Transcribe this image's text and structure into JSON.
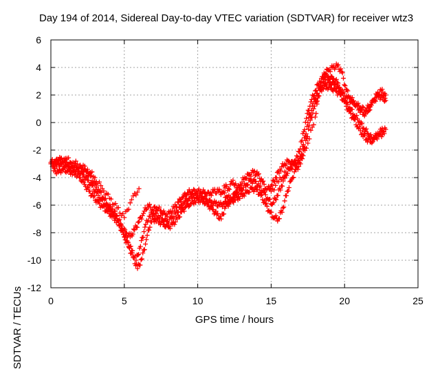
{
  "chart_data": {
    "type": "scatter",
    "title": "Day 194 of 2014, Sidereal Day-to-day VTEC variation (SDTVAR) for receiver wtz3",
    "xlabel": "GPS time / hours",
    "ylabel": "SDTVAR / TECUs",
    "xlim": [
      0,
      25
    ],
    "ylim": [
      -12,
      6
    ],
    "xticks": [
      0,
      5,
      10,
      15,
      20,
      25
    ],
    "yticks": [
      -12,
      -10,
      -8,
      -6,
      -4,
      -2,
      0,
      2,
      4,
      6
    ],
    "grid": true,
    "marker": "+",
    "color": "#ff0000",
    "series": [
      {
        "x": [
          0.0,
          0.3,
          0.6,
          0.9,
          1.2,
          1.5,
          1.8,
          2.1,
          2.4,
          2.7,
          3.0,
          3.3,
          3.6,
          3.9,
          4.2,
          4.5,
          4.8,
          5.1,
          5.4,
          5.7,
          6.0,
          6.3,
          6.6,
          6.9,
          7.2,
          7.5,
          7.8,
          8.1,
          8.4,
          8.7,
          9.0,
          9.3,
          9.6,
          9.9,
          10.2,
          10.5,
          10.8,
          11.1,
          11.4,
          11.7,
          12.0,
          12.3,
          12.6,
          12.9,
          13.2,
          13.5,
          13.8,
          14.1,
          14.4,
          14.7,
          15.0,
          15.3,
          15.6,
          15.9,
          16.2,
          16.5,
          16.8,
          17.1,
          17.4,
          17.7,
          18.0,
          18.3,
          18.6,
          18.9,
          19.2,
          19.5,
          19.8,
          20.1,
          20.4,
          20.7,
          21.0,
          21.3,
          21.6,
          21.9,
          22.2,
          22.5,
          22.8
        ],
        "y": [
          -3.0,
          -2.9,
          -2.7,
          -2.8,
          -3.0,
          -3.1,
          -3.2,
          -3.3,
          -3.6,
          -3.9,
          -4.5,
          -5.0,
          -5.5,
          -6.0,
          -6.3,
          -6.8,
          -7.5,
          -8.0,
          -8.3,
          -7.8,
          -7.2,
          -6.6,
          -6.0,
          -6.3,
          -6.2,
          -6.4,
          -6.7,
          -6.6,
          -6.2,
          -5.8,
          -5.4,
          -5.1,
          -5.0,
          -5.0,
          -5.0,
          -5.1,
          -5.2,
          -5.0,
          -5.0,
          -5.1,
          -5.4,
          -5.6,
          -5.0,
          -4.5,
          -4.0,
          -3.8,
          -3.6,
          -3.8,
          -4.3,
          -4.9,
          -4.6,
          -4.0,
          -3.4,
          -3.0,
          -2.8,
          -3.0,
          -2.5,
          -1.3,
          0.3,
          1.5,
          2.3,
          3.0,
          3.3,
          3.3,
          3.2,
          2.9,
          2.1,
          1.4,
          1.0,
          0.5,
          0.1,
          -0.4,
          -0.8,
          -1.2,
          -0.9,
          -0.6,
          -0.5
        ]
      },
      {
        "x": [
          0.2,
          0.5,
          0.8,
          1.1,
          1.4,
          1.7,
          2.0,
          2.3,
          2.6,
          2.9,
          3.2,
          3.5,
          3.8,
          4.1,
          4.4,
          4.7,
          5.0,
          5.3,
          5.6,
          5.9,
          6.2,
          6.5,
          6.8,
          7.1,
          7.4,
          7.7,
          8.0,
          8.3,
          8.6,
          8.9,
          9.2,
          9.5,
          9.8,
          10.1,
          10.4,
          10.7,
          11.0,
          11.3,
          11.6,
          11.9,
          12.2,
          12.5,
          12.8,
          13.1,
          13.4,
          13.7,
          14.0,
          14.3,
          14.6,
          14.9,
          15.2,
          15.5,
          15.8,
          16.1,
          16.4,
          16.7,
          17.0,
          17.3,
          17.6,
          17.9,
          18.2,
          18.5,
          18.8,
          19.1,
          19.4,
          19.7,
          20.0,
          20.3,
          20.6,
          20.9,
          21.2,
          21.5,
          21.8,
          22.1,
          22.4,
          22.7
        ],
        "y": [
          -3.5,
          -3.6,
          -3.4,
          -3.5,
          -3.6,
          -3.7,
          -4.0,
          -4.5,
          -5.0,
          -5.4,
          -5.8,
          -6.1,
          -6.4,
          -6.7,
          -7.0,
          -7.5,
          -8.3,
          -9.0,
          -9.8,
          -10.6,
          -9.9,
          -8.5,
          -7.2,
          -7.0,
          -7.2,
          -7.4,
          -7.6,
          -7.4,
          -7.0,
          -6.5,
          -6.1,
          -5.9,
          -5.7,
          -5.6,
          -5.7,
          -6.0,
          -6.3,
          -6.7,
          -7.0,
          -6.1,
          -5.8,
          -5.6,
          -5.4,
          -5.2,
          -5.0,
          -4.8,
          -4.9,
          -5.3,
          -5.9,
          -6.5,
          -6.9,
          -7.0,
          -6.2,
          -5.0,
          -4.1,
          -3.4,
          -3.0,
          -1.8,
          -0.2,
          1.0,
          1.9,
          2.6,
          2.6,
          2.5,
          2.3,
          2.0,
          1.5,
          0.8,
          0.3,
          -0.3,
          -0.8,
          -1.2,
          -1.4,
          -1.1,
          -0.9,
          -0.8
        ]
      },
      {
        "x": [
          0.1,
          0.4,
          0.7,
          1.0,
          1.3,
          1.6,
          1.9,
          2.2,
          2.5,
          2.8,
          3.1,
          3.4,
          3.7,
          4.0,
          4.3,
          4.6,
          4.9,
          5.2,
          5.5,
          5.8,
          6.1,
          6.4,
          6.7,
          7.0,
          7.3,
          7.6,
          7.9,
          8.2,
          8.5,
          8.8,
          9.1,
          9.4,
          9.7,
          10.0,
          10.3,
          10.6,
          10.9,
          11.2,
          11.5,
          11.8,
          12.1,
          12.4,
          12.7,
          13.0,
          13.3,
          13.6,
          13.9,
          14.2,
          14.5,
          14.8,
          15.1,
          15.4,
          15.7,
          16.0,
          16.3,
          16.6,
          16.9,
          17.2,
          17.5,
          17.8,
          18.1,
          18.4,
          18.7,
          19.0,
          19.3,
          19.6,
          19.9,
          20.2,
          20.5,
          20.8,
          21.1,
          21.4,
          21.7,
          22.0,
          22.3,
          22.6,
          22.8
        ],
        "y": [
          -3.2,
          -3.1,
          -3.0,
          -3.1,
          -3.3,
          -3.4,
          -3.5,
          -3.8,
          -4.2,
          -4.6,
          -5.1,
          -5.6,
          -6.0,
          -6.3,
          -6.6,
          -7.1,
          -7.9,
          -8.6,
          -9.3,
          -10.0,
          -9.0,
          -7.6,
          -6.8,
          -6.6,
          -6.8,
          -7.0,
          -7.2,
          -7.0,
          -6.6,
          -6.2,
          -5.8,
          -5.5,
          -5.3,
          -5.3,
          -5.4,
          -5.6,
          -5.8,
          -5.9,
          -6.0,
          -5.9,
          -5.7,
          -5.4,
          -5.1,
          -4.8,
          -4.5,
          -4.2,
          -4.3,
          -4.7,
          -5.1,
          -5.6,
          -5.9,
          -5.3,
          -4.6,
          -3.8,
          -3.3,
          -3.1,
          -2.9,
          -1.6,
          0.0,
          1.2,
          2.1,
          2.7,
          2.9,
          2.9,
          2.8,
          2.5,
          2.1,
          1.8,
          1.5,
          1.3,
          1.1,
          0.9,
          1.2,
          1.6,
          1.9,
          1.8,
          1.6
        ]
      },
      {
        "x": [
          0.0,
          0.5,
          1.0,
          1.5,
          2.0,
          2.5,
          3.0,
          3.5,
          4.0,
          4.5,
          5.0,
          5.5,
          6.0,
          11.8,
          12.1,
          12.4,
          12.7,
          15.0,
          15.5,
          16.0,
          16.5,
          17.0,
          17.5,
          18.0,
          18.3,
          18.6,
          18.9,
          19.2,
          19.5,
          19.8,
          20.1,
          20.4,
          20.7,
          21.0,
          21.3,
          21.6,
          21.9,
          22.2,
          22.5,
          22.8
        ],
        "y": [
          -2.9,
          -2.7,
          -2.6,
          -2.9,
          -3.1,
          -3.4,
          -4.0,
          -4.8,
          -5.5,
          -6.2,
          -6.9,
          -5.6,
          -4.8,
          -4.6,
          -4.8,
          -4.2,
          -4.9,
          -5.0,
          -4.3,
          -3.6,
          -3.0,
          -2.6,
          -1.5,
          0.4,
          2.5,
          3.6,
          3.8,
          4.0,
          4.1,
          3.7,
          2.4,
          1.8,
          1.4,
          1.0,
          0.6,
          0.8,
          1.5,
          2.0,
          2.3,
          2.0
        ]
      }
    ]
  }
}
